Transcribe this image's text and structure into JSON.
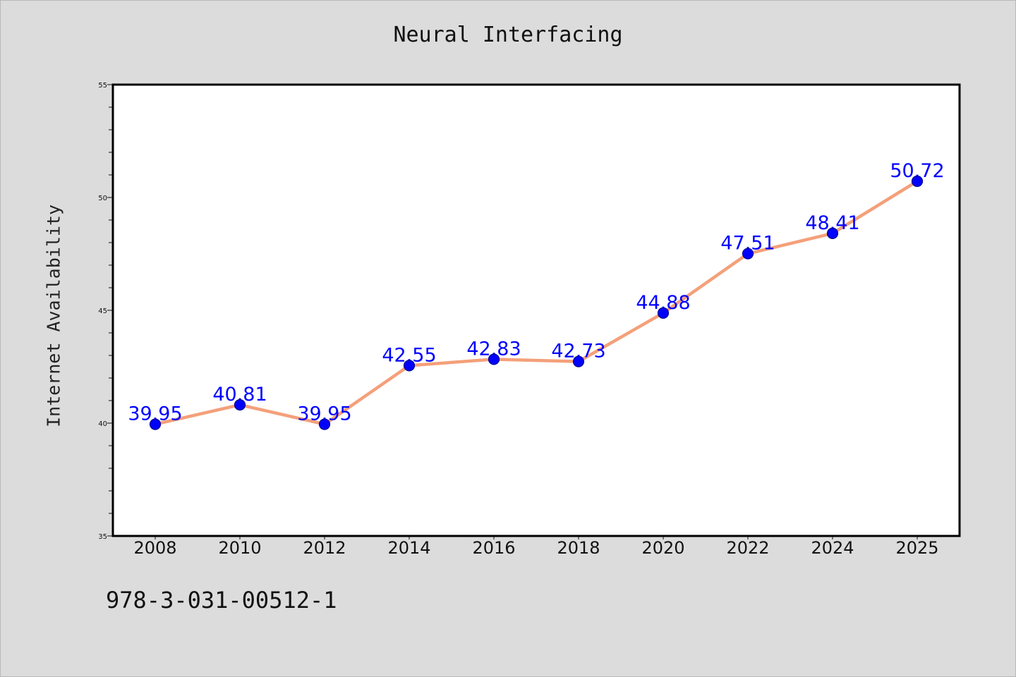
{
  "chart_data": {
    "type": "line",
    "title": "Neural Interfacing",
    "xlabel": "",
    "ylabel": "Internet Availability",
    "categories": [
      "2008",
      "2010",
      "2012",
      "2014",
      "2016",
      "2018",
      "2020",
      "2022",
      "2024",
      "2025"
    ],
    "series": [
      {
        "values": [
          39.95,
          40.81,
          39.95,
          42.55,
          42.83,
          42.73,
          44.88,
          47.51,
          48.41,
          50.72
        ]
      }
    ],
    "data_labels": [
      "39.95",
      "40.81",
      "39.95",
      "42.55",
      "42.83",
      "42.73",
      "44.88",
      "47.51",
      "48.41",
      "50.72"
    ],
    "ylim": [
      35,
      55
    ],
    "y_ticks": [
      "35",
      "40",
      "45",
      "50",
      "55"
    ],
    "grid": false,
    "line_color": "#f4a07a",
    "marker_color": "#0000ff",
    "label_color": "#0000ff"
  },
  "footer_text": "978-3-031-00512-1"
}
